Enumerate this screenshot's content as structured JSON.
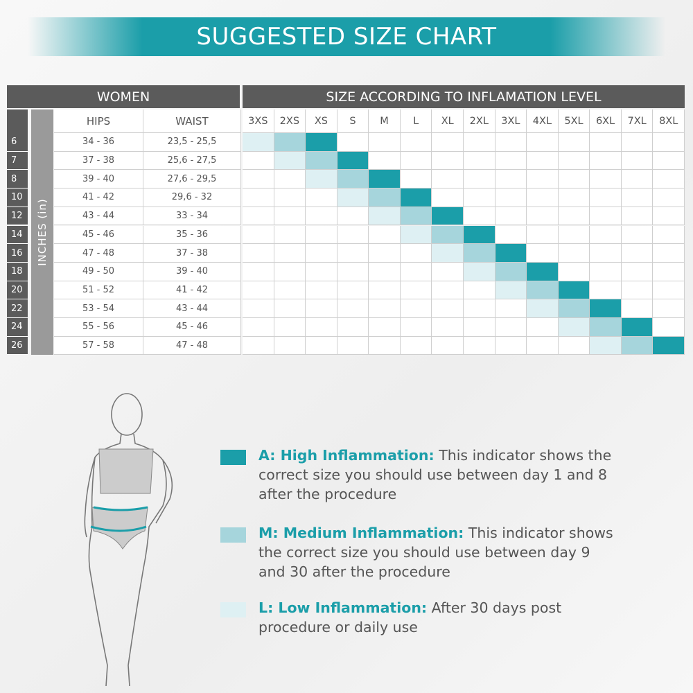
{
  "title": "SUGGESTED SIZE CHART",
  "table": {
    "group_headers": [
      "WOMEN",
      "SIZE ACCORDING TO INFLAMATION LEVEL"
    ],
    "side_label": "INCHES (in)",
    "columns": [
      "HIPS",
      "WAIST"
    ],
    "sizes": [
      "3XS",
      "2XS",
      "XS",
      "S",
      "M",
      "L",
      "XL",
      "2XL",
      "3XL",
      "4XL",
      "5XL",
      "6XL",
      "7XL",
      "8XL"
    ],
    "rows": [
      {
        "size": "6",
        "hips": "34 - 36",
        "waist": "23,5 - 25,5",
        "levels": {
          "low": "3XS",
          "medium": "2XS",
          "high": "XS"
        }
      },
      {
        "size": "7",
        "hips": "37 - 38",
        "waist": "25,6 - 27,5",
        "levels": {
          "low": "2XS",
          "medium": "XS",
          "high": "S"
        }
      },
      {
        "size": "8",
        "hips": "39 - 40",
        "waist": "27,6 - 29,5",
        "levels": {
          "low": "XS",
          "medium": "S",
          "high": "M"
        }
      },
      {
        "size": "10",
        "hips": "41 - 42",
        "waist": "29,6 - 32",
        "levels": {
          "low": "S",
          "medium": "M",
          "high": "L"
        }
      },
      {
        "size": "12",
        "hips": "43 - 44",
        "waist": "33 - 34",
        "levels": {
          "low": "M",
          "medium": "L",
          "high": "XL"
        }
      },
      {
        "size": "14",
        "hips": "45 - 46",
        "waist": "35 - 36",
        "levels": {
          "low": "L",
          "medium": "XL",
          "high": "2XL"
        }
      },
      {
        "size": "16",
        "hips": "47 - 48",
        "waist": "37 - 38",
        "levels": {
          "low": "XL",
          "medium": "2XL",
          "high": "3XL"
        }
      },
      {
        "size": "18",
        "hips": "49 - 50",
        "waist": "39 - 40",
        "levels": {
          "low": "2XL",
          "medium": "3XL",
          "high": "4XL"
        }
      },
      {
        "size": "20",
        "hips": "51 - 52",
        "waist": "41 - 42",
        "levels": {
          "low": "3XL",
          "medium": "4XL",
          "high": "5XL"
        }
      },
      {
        "size": "22",
        "hips": "53 - 54",
        "waist": "43 - 44",
        "levels": {
          "low": "4XL",
          "medium": "5XL",
          "high": "6XL"
        }
      },
      {
        "size": "24",
        "hips": "55 - 56",
        "waist": "45 - 46",
        "levels": {
          "low": "5XL",
          "medium": "6XL",
          "high": "7XL"
        }
      },
      {
        "size": "26",
        "hips": "57 - 58",
        "waist": "47 - 48",
        "levels": {
          "low": "6XL",
          "medium": "7XL",
          "high": "8XL"
        }
      }
    ]
  },
  "legend": {
    "high": {
      "label": "A: High Inflammation:",
      "text": "This indicator shows the correct size you should use between day 1 and 8 after the procedure",
      "color": "#1b9ea9"
    },
    "medium": {
      "label": "M: Medium Inflammation:",
      "text": "This indicator shows the correct size you should use between day 9 and 30 after the procedure",
      "color": "#a6d5dc"
    },
    "low": {
      "label": "L: Low Inflammation:",
      "text": "After 30 days post procedure or daily use",
      "color": "#def0f3"
    }
  }
}
